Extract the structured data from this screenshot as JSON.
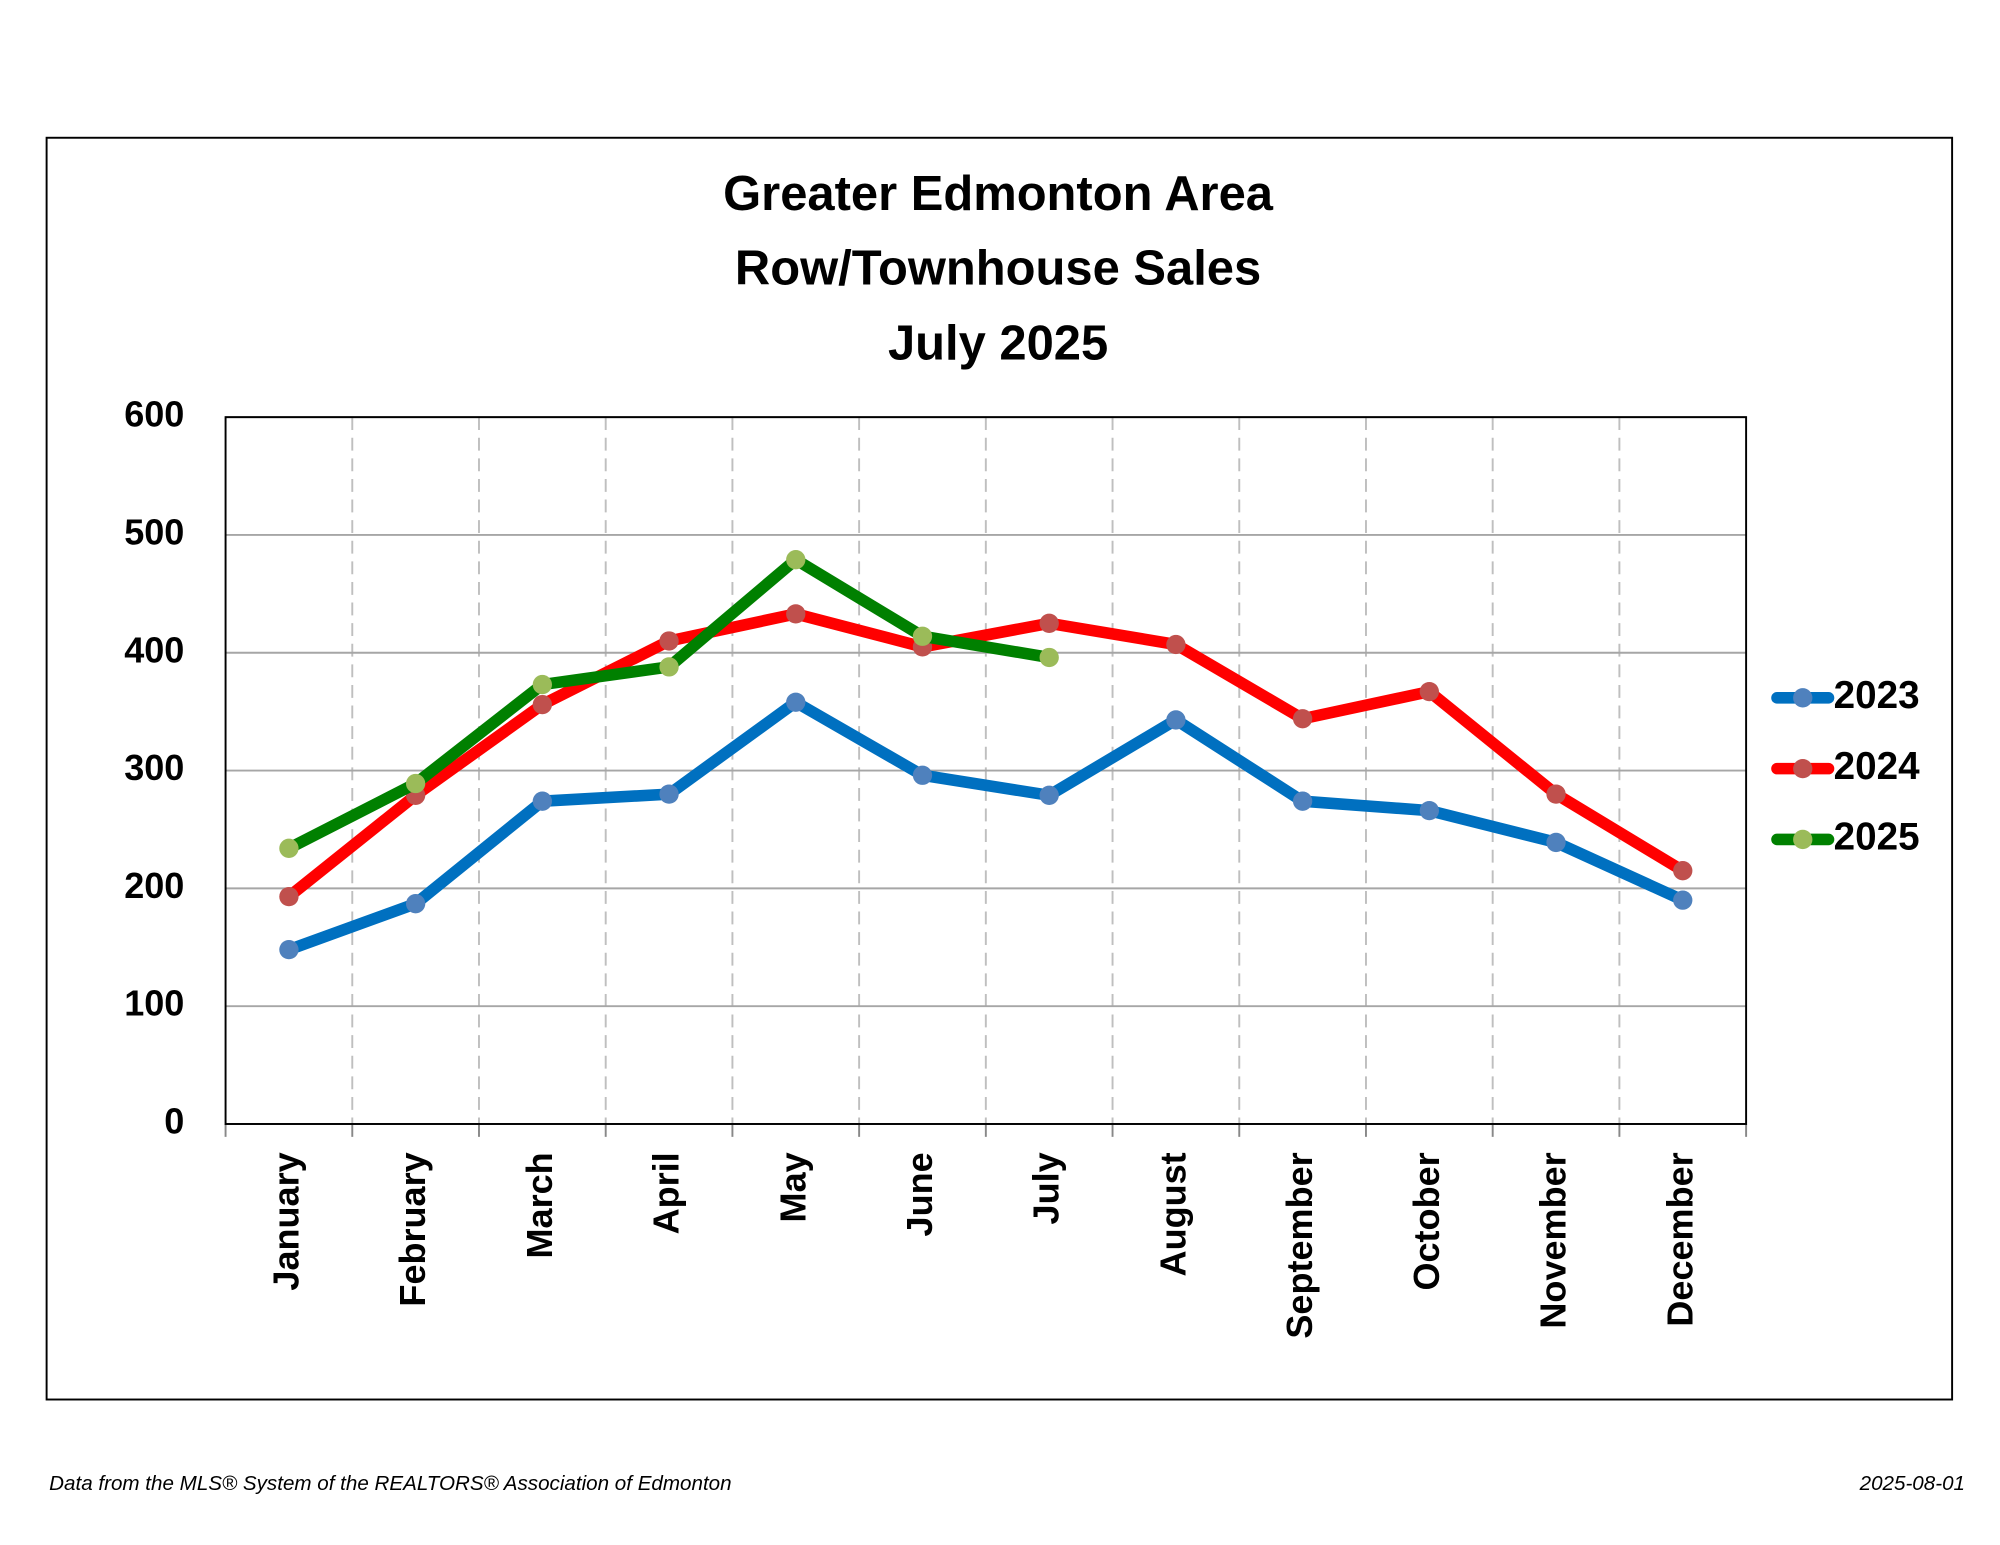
{
  "chart_data": {
    "type": "line",
    "title": [
      "Greater Edmonton Area",
      "Row/Townhouse Sales",
      "July 2025"
    ],
    "categories": [
      "January",
      "February",
      "March",
      "April",
      "May",
      "June",
      "July",
      "August",
      "September",
      "October",
      "November",
      "December"
    ],
    "series": [
      {
        "name": "2023",
        "color": "#0070c0",
        "marker_color": "#4f81bd",
        "values": [
          148,
          187,
          274,
          280,
          358,
          296,
          279,
          343,
          274,
          266,
          239,
          190
        ]
      },
      {
        "name": "2024",
        "color": "#ff0000",
        "marker_color": "#c0504d",
        "values": [
          193,
          279,
          356,
          410,
          433,
          405,
          425,
          407,
          344,
          367,
          280,
          215
        ]
      },
      {
        "name": "2025",
        "color": "#008000",
        "marker_color": "#9bbb59",
        "values": [
          234,
          289,
          373,
          388,
          479,
          414,
          396,
          null,
          null,
          null,
          null,
          null
        ]
      }
    ],
    "ylim": [
      0,
      600
    ],
    "yticks": [
      0,
      100,
      200,
      300,
      400,
      500,
      600
    ],
    "grid": true,
    "legend": "right",
    "source": "Data from the MLS® System of the REALTORS® Association of Edmonton",
    "date": "2025-08-01"
  }
}
